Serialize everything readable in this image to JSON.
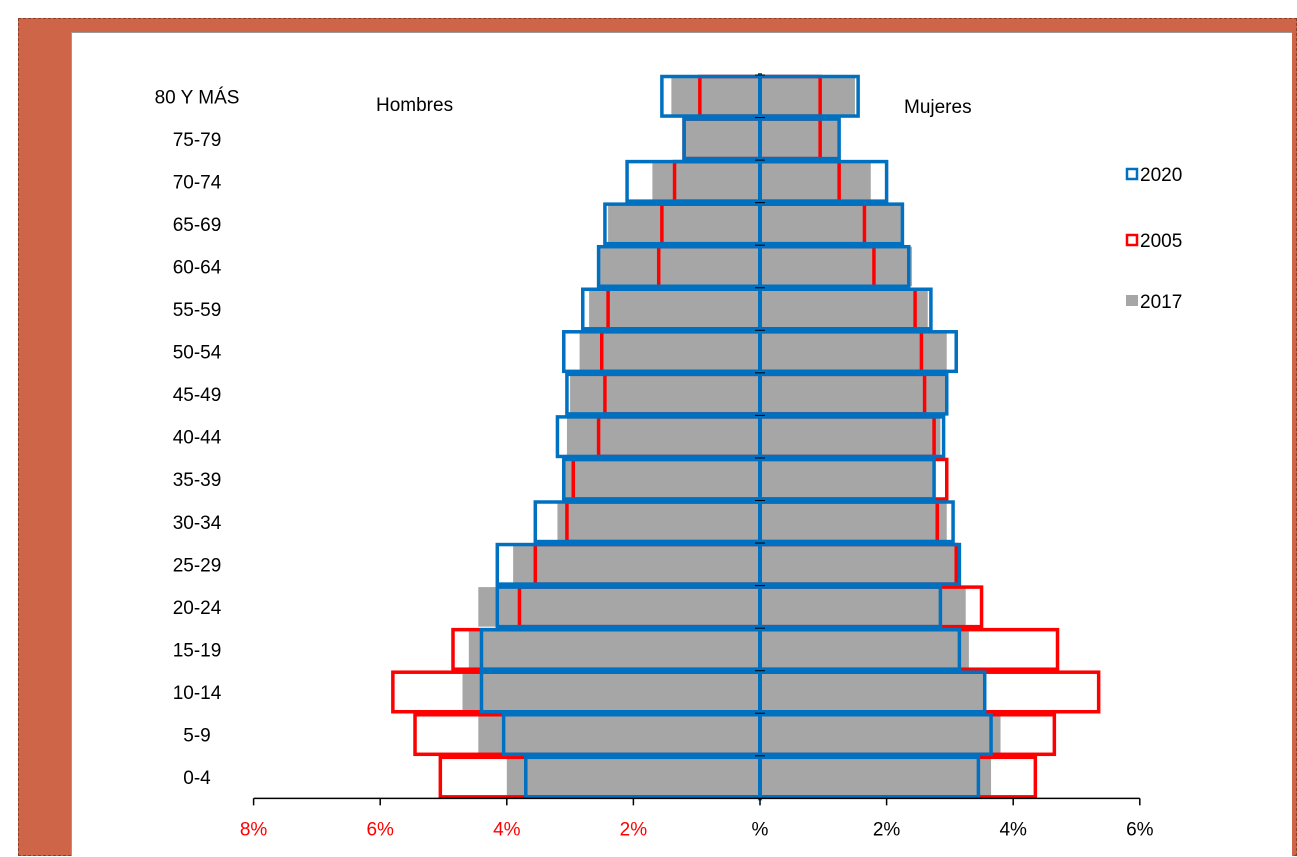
{
  "colors": {
    "frame": "#cf6548",
    "series_2020": "#0070c0",
    "series_2005": "#ff0000",
    "series_2017": "#a6a6a6",
    "neg_ticks": "#ff0000",
    "pos_ticks": "#000000"
  },
  "chart_data": {
    "type": "bar",
    "orientation": "horizontal",
    "subtype": "population pyramid",
    "title": "",
    "xlabel": "",
    "ylabel": "",
    "xlim": [
      -8,
      6
    ],
    "grid": false,
    "legend_position": "right",
    "side_labels": {
      "left": "Hombres",
      "right": "Mujeres"
    },
    "legend": [
      "2020",
      "2005",
      "2017"
    ],
    "x_ticks": [
      "8%",
      "6%",
      "4%",
      "2%",
      "%",
      "2%",
      "4%",
      "6%"
    ],
    "x_tick_values": [
      -8,
      -6,
      -4,
      -2,
      0,
      2,
      4,
      6
    ],
    "categories": [
      "0-4",
      "5-9",
      "10-14",
      "15-19",
      "20-24",
      "25-29",
      "30-34",
      "35-39",
      "40-44",
      "45-49",
      "50-54",
      "55-59",
      "60-64",
      "65-69",
      "70-74",
      "75-79",
      "80 Y MÁS"
    ],
    "series": [
      {
        "name": "2017",
        "style": "filled",
        "men": [
          4.0,
          4.45,
          4.7,
          4.6,
          4.45,
          3.9,
          3.2,
          3.1,
          3.05,
          3.0,
          2.85,
          2.7,
          2.55,
          2.4,
          1.7,
          1.2,
          1.4
        ],
        "women": [
          3.65,
          3.8,
          3.55,
          3.3,
          3.25,
          3.15,
          2.95,
          2.75,
          2.85,
          2.95,
          2.95,
          2.65,
          2.4,
          2.25,
          1.75,
          1.25,
          1.5
        ]
      },
      {
        "name": "2020",
        "style": "outline",
        "men": [
          3.7,
          4.05,
          4.4,
          4.4,
          4.15,
          4.15,
          3.55,
          3.1,
          3.2,
          3.05,
          3.1,
          2.8,
          2.55,
          2.45,
          2.1,
          1.2,
          1.55
        ],
        "women": [
          3.45,
          3.65,
          3.55,
          3.15,
          2.85,
          3.15,
          3.05,
          2.75,
          2.9,
          2.95,
          3.1,
          2.7,
          2.35,
          2.25,
          2.0,
          1.25,
          1.55
        ]
      },
      {
        "name": "2005",
        "style": "outline",
        "men": [
          5.05,
          5.45,
          5.8,
          4.85,
          3.8,
          3.55,
          3.05,
          2.95,
          2.55,
          2.45,
          2.5,
          2.4,
          1.6,
          1.55,
          1.35,
          1.2,
          0.95
        ],
        "women": [
          4.35,
          4.65,
          5.35,
          4.7,
          3.5,
          3.1,
          2.8,
          2.95,
          2.75,
          2.6,
          2.55,
          2.45,
          1.8,
          1.65,
          1.25,
          0.95,
          0.95
        ]
      }
    ]
  }
}
